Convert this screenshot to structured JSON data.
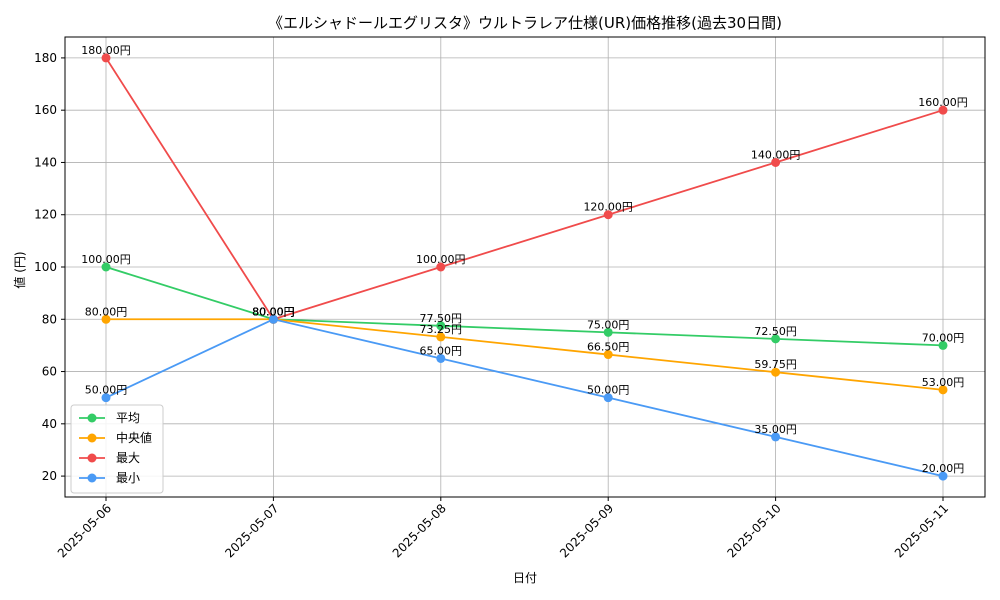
{
  "chart_data": {
    "type": "line",
    "title": "《エルシャドールエグリスタ》ウルトラレア仕様(UR)価格推移(過去30日間)",
    "xlabel": "日付",
    "ylabel": "値 (円)",
    "categories": [
      "2025-05-06",
      "2025-05-07",
      "2025-05-08",
      "2025-05-09",
      "2025-05-10",
      "2025-05-11"
    ],
    "ylim": [
      12,
      188
    ],
    "yticks": [
      20,
      40,
      60,
      80,
      100,
      120,
      140,
      160,
      180
    ],
    "grid": true,
    "legend_position": "lower-left",
    "series": [
      {
        "name": "平均",
        "color": "#33cc66",
        "values": [
          100,
          80,
          77.5,
          75,
          72.5,
          70
        ],
        "labels": [
          "100.00円",
          "80.00円",
          "77.50円",
          "75.00円",
          "72.50円",
          "70.00円"
        ]
      },
      {
        "name": "中央値",
        "color": "#ffa500",
        "values": [
          80,
          80,
          73.25,
          66.5,
          59.75,
          53
        ],
        "labels": [
          "80.00円",
          "80.00円",
          "73.25円",
          "66.50円",
          "59.75円",
          "53.00円"
        ]
      },
      {
        "name": "最大",
        "color": "#f04b4b",
        "values": [
          180,
          80,
          100,
          120,
          140,
          160
        ],
        "labels": [
          "180.00円",
          "80.00円",
          "100.00円",
          "120.00円",
          "140.00円",
          "160.00円"
        ]
      },
      {
        "name": "最小",
        "color": "#4a9af5",
        "values": [
          50,
          80,
          65,
          50,
          35,
          20
        ],
        "labels": [
          "50.00円",
          "80.00円",
          "65.00円",
          "50.00円",
          "35.00円",
          "20.00円"
        ]
      }
    ]
  }
}
